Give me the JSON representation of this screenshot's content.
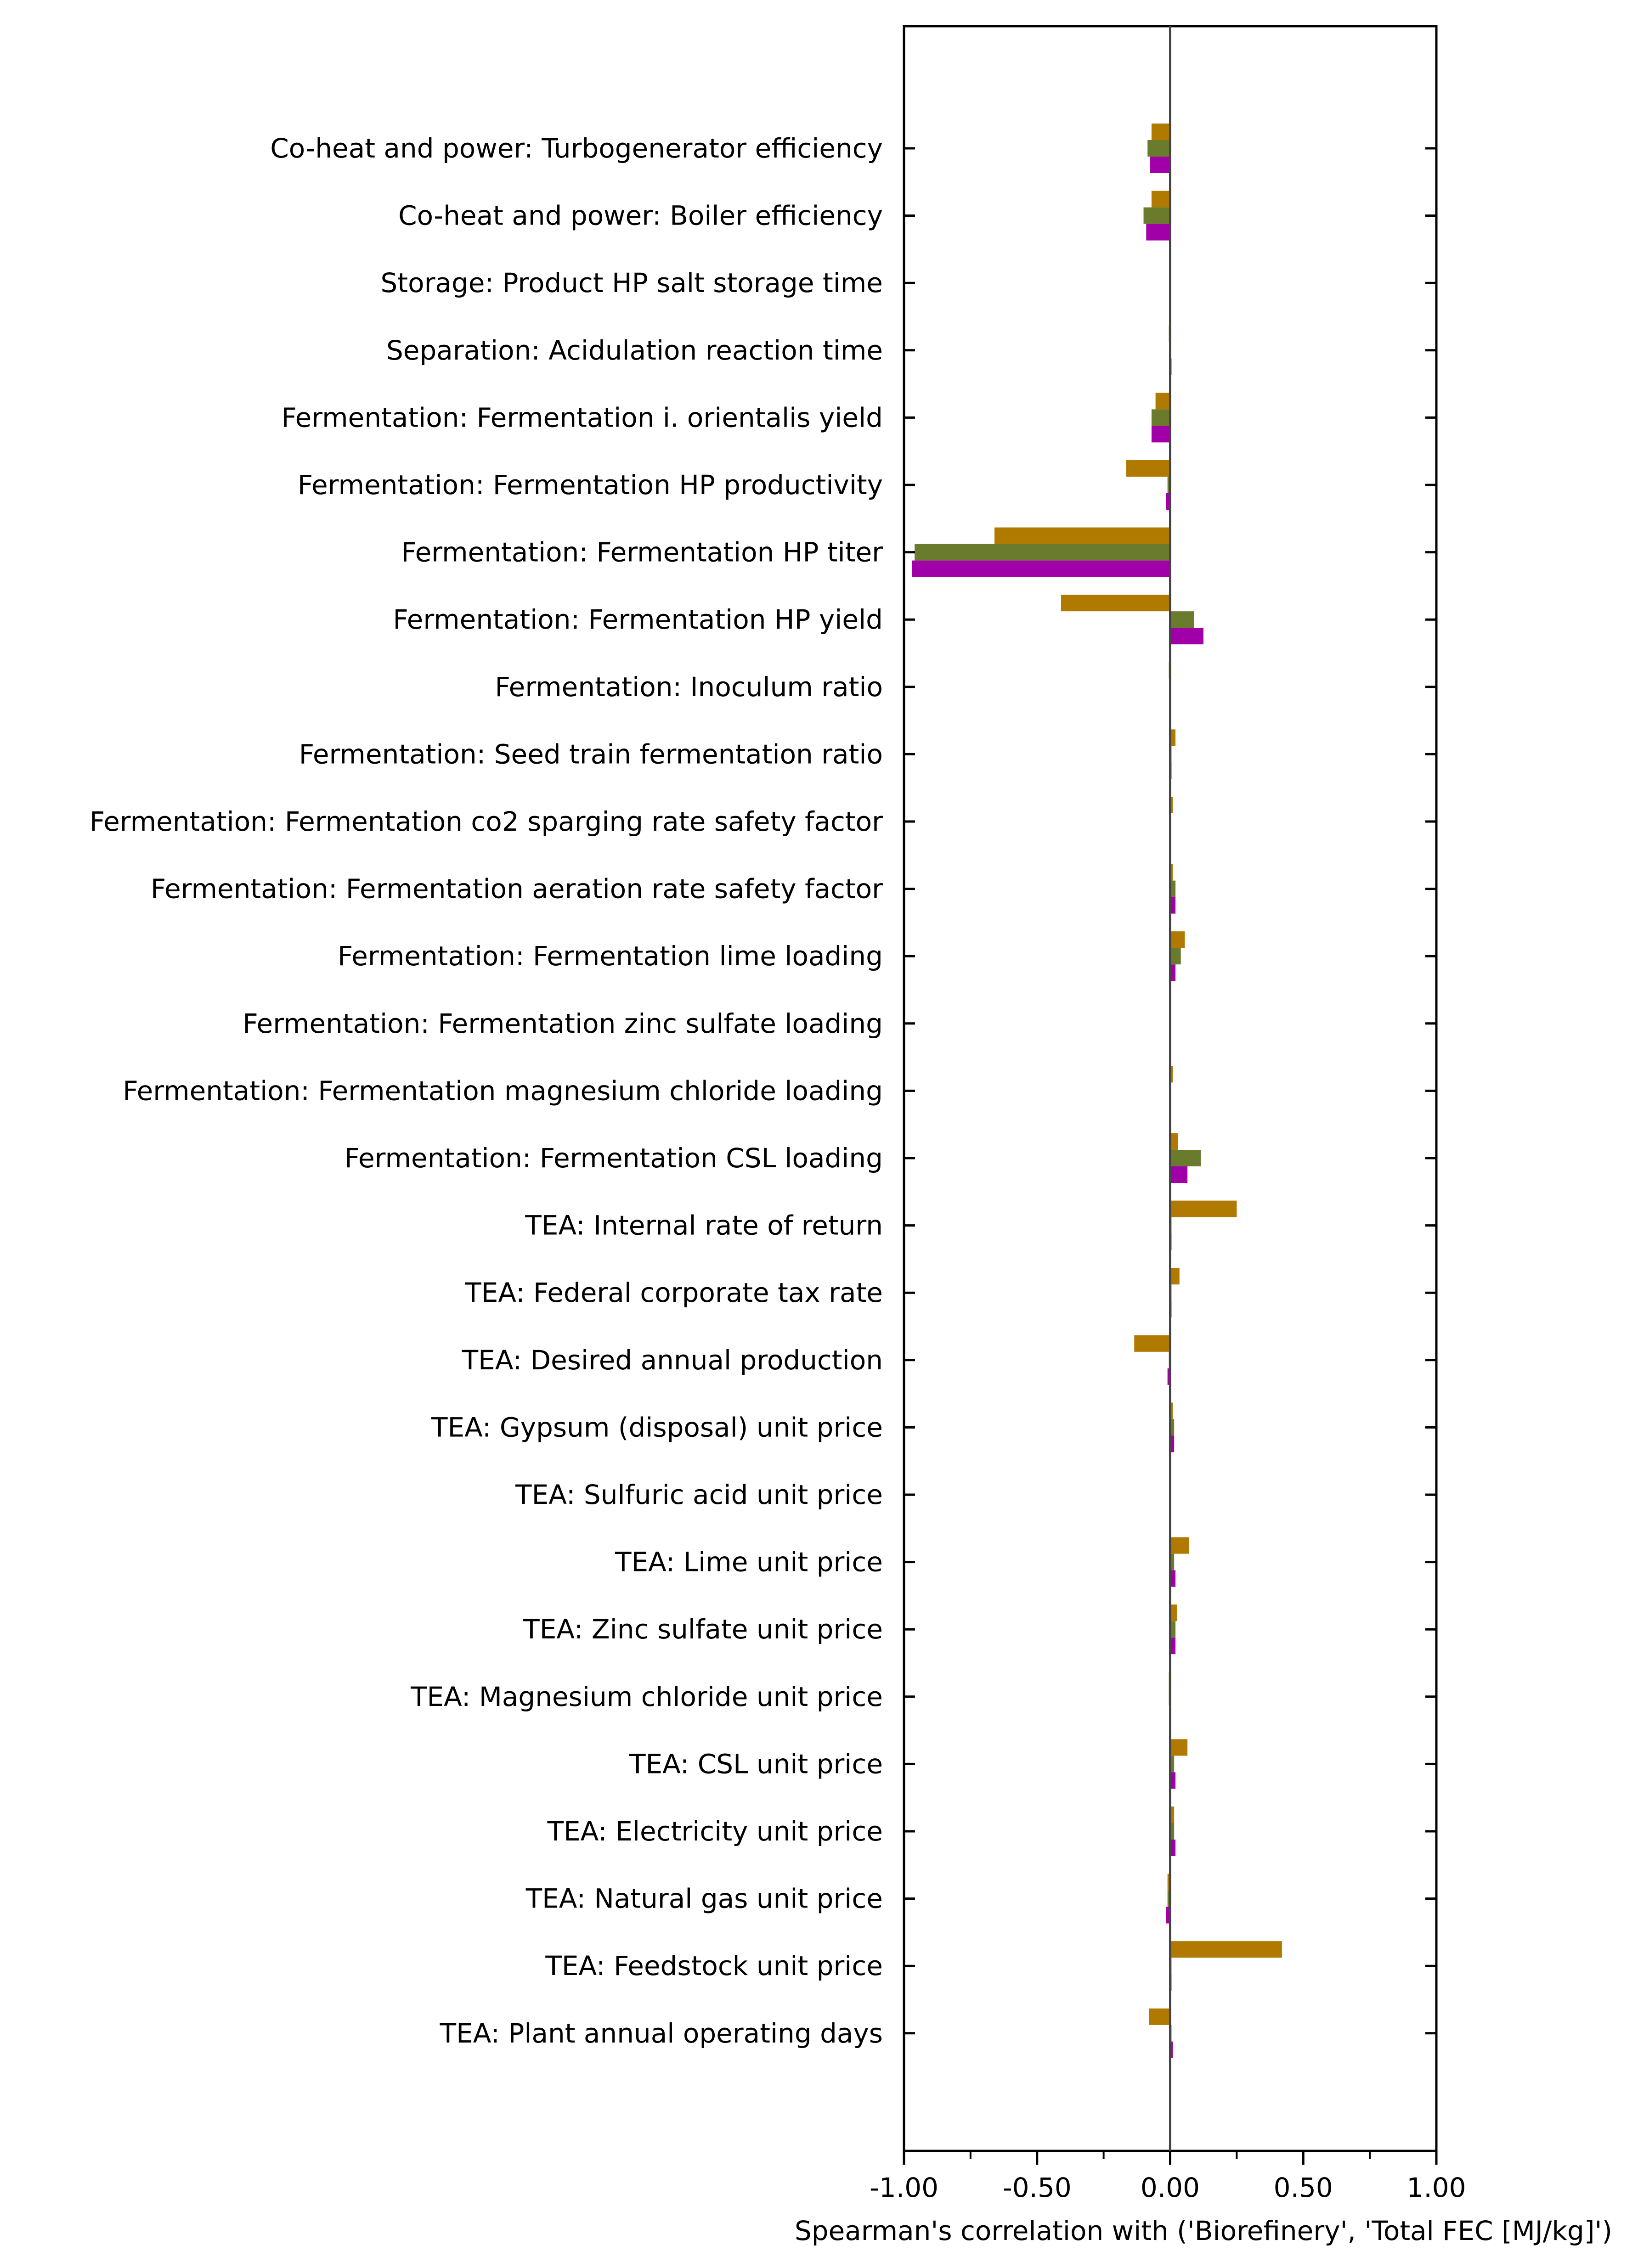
{
  "chart_data": {
    "type": "bar",
    "orientation": "horizontal",
    "title": "",
    "xlabel": "Spearman's correlation with ('Biorefinery', 'Total FEC [MJ/kg]')",
    "ylabel": "",
    "xlim": [
      -1.0,
      1.0
    ],
    "xticks": [
      -1.0,
      -0.5,
      0.0,
      0.5,
      1.0
    ],
    "xtick_labels": [
      "-1.00",
      "-0.50",
      "0.00",
      "0.50",
      "1.00"
    ],
    "grid": false,
    "legend": "none",
    "categories": [
      "Co-heat and power: Turbogenerator efficiency",
      "Co-heat and power: Boiler efficiency",
      "Storage: Product HP salt storage time",
      "Separation: Acidulation reaction time",
      "Fermentation: Fermentation i. orientalis yield",
      "Fermentation: Fermentation HP productivity",
      "Fermentation: Fermentation HP titer",
      "Fermentation: Fermentation HP yield",
      "Fermentation: Inoculum ratio",
      "Fermentation: Seed train fermentation ratio",
      "Fermentation: Fermentation co2 sparging rate safety factor",
      "Fermentation: Fermentation aeration rate safety factor",
      "Fermentation: Fermentation lime loading",
      "Fermentation: Fermentation zinc sulfate loading",
      "Fermentation: Fermentation magnesium chloride loading",
      "Fermentation: Fermentation CSL loading",
      "TEA: Internal rate of return",
      "TEA: Federal corporate tax rate",
      "TEA: Desired annual production",
      "TEA: Gypsum (disposal) unit price",
      "TEA: Sulfuric acid unit price",
      "TEA: Lime unit price",
      "TEA: Zinc sulfate unit price",
      "TEA: Magnesium chloride unit price",
      "TEA: CSL unit price",
      "TEA: Electricity unit price",
      "TEA: Natural gas unit price",
      "TEA: Feedstock unit price",
      "TEA: Plant annual operating days"
    ],
    "series": [
      {
        "color": "#B07A00",
        "values": [
          -0.07,
          -0.07,
          0.0,
          -0.005,
          -0.055,
          -0.165,
          -0.66,
          -0.41,
          -0.005,
          0.02,
          0.01,
          0.01,
          0.055,
          0.0,
          0.01,
          0.03,
          0.25,
          0.035,
          -0.135,
          0.01,
          0.0,
          0.07,
          0.025,
          -0.005,
          0.065,
          0.015,
          -0.01,
          0.42,
          -0.08
        ]
      },
      {
        "color": "#6B7B2E",
        "values": [
          -0.085,
          -0.1,
          0.0,
          0.0,
          -0.07,
          -0.01,
          -0.96,
          0.09,
          0.0,
          0.005,
          0.0,
          0.02,
          0.04,
          0.0,
          0.0,
          0.115,
          0.005,
          0.005,
          -0.005,
          0.015,
          0.0,
          0.015,
          0.02,
          -0.005,
          0.015,
          0.015,
          -0.01,
          0.005,
          0.005
        ]
      },
      {
        "color": "#A100A8",
        "values": [
          -0.075,
          -0.09,
          0.0,
          0.005,
          -0.07,
          -0.015,
          -0.97,
          0.125,
          0.0,
          0.005,
          0.0,
          0.02,
          0.02,
          0.0,
          0.0,
          0.065,
          0.005,
          0.005,
          -0.01,
          0.015,
          0.0,
          0.02,
          0.02,
          0.0,
          0.02,
          0.02,
          -0.015,
          0.005,
          0.01
        ]
      }
    ]
  }
}
